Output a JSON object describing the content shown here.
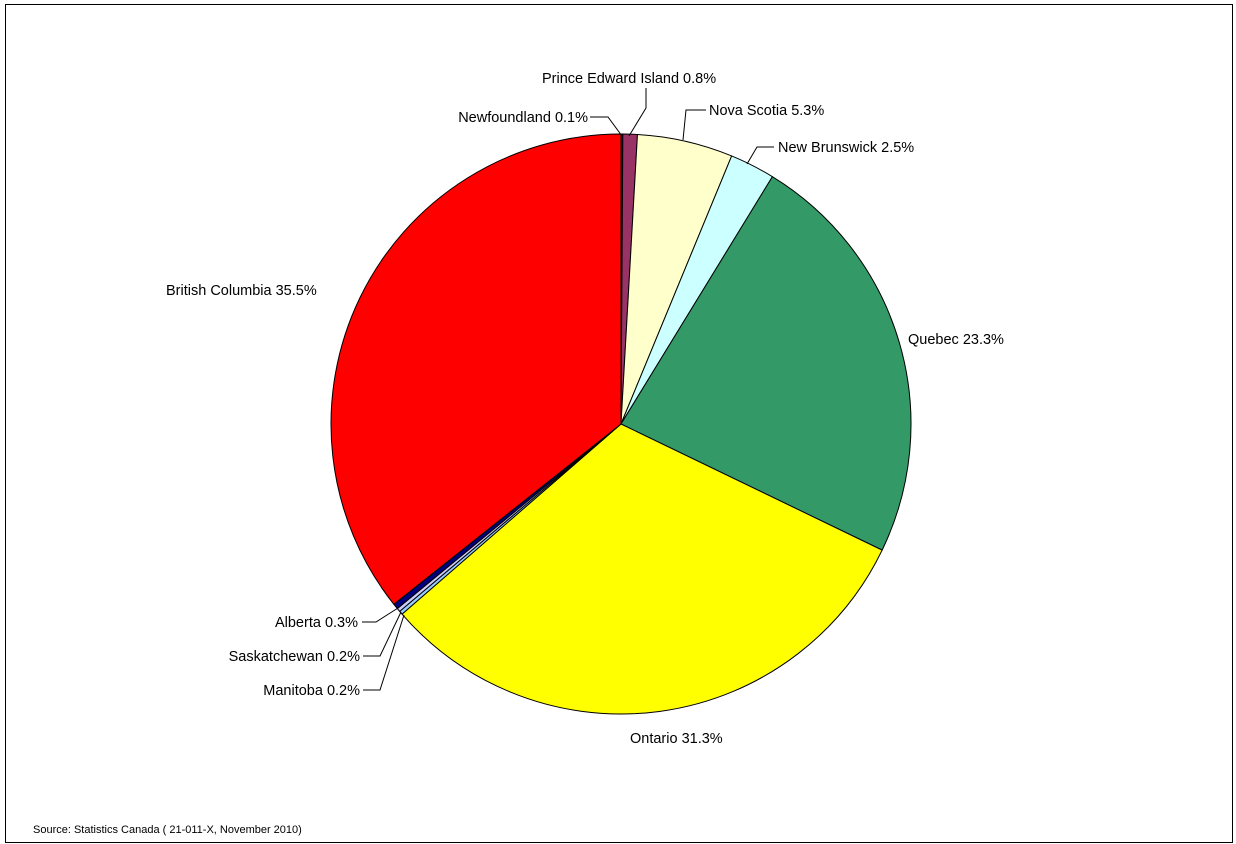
{
  "source_note": "Source: Statistics Canada ( 21-011-X, November 2010)",
  "chart_data": {
    "type": "pie",
    "title": "",
    "start_angle_deg": 0,
    "direction": "clockwise",
    "slices": [
      {
        "name": "Newfoundland",
        "value": 0.1,
        "label": "Newfoundland  0.1%",
        "color": "#1F1F7A"
      },
      {
        "name": "Prince Edward Island",
        "value": 0.8,
        "label": "Prince Edward Island 0.8%",
        "color": "#993366"
      },
      {
        "name": "Nova Scotia",
        "value": 5.3,
        "label": "Nova Scotia 5.3%",
        "color": "#FFFFCC"
      },
      {
        "name": "New Brunswick",
        "value": 2.5,
        "label": "New Brunswick 2.5%",
        "color": "#CCFFFF"
      },
      {
        "name": "Quebec",
        "value": 23.3,
        "label": "Quebec 23.3%",
        "color": "#339966"
      },
      {
        "name": "Ontario",
        "value": 31.3,
        "label": "Ontario 31.3%",
        "color": "#FFFF00"
      },
      {
        "name": "Manitoba",
        "value": 0.2,
        "label": "Manitoba 0.2%",
        "color": "#99CCFF"
      },
      {
        "name": "Saskatchewan",
        "value": 0.2,
        "label": "Saskatchewan 0.2%",
        "color": "#CCCCFF"
      },
      {
        "name": "Alberta",
        "value": 0.3,
        "label": "Alberta 0.3%",
        "color": "#000080"
      },
      {
        "name": "British Columbia",
        "value": 35.5,
        "label": "British Columbia 35.5%",
        "color": "#FF0000"
      }
    ]
  }
}
